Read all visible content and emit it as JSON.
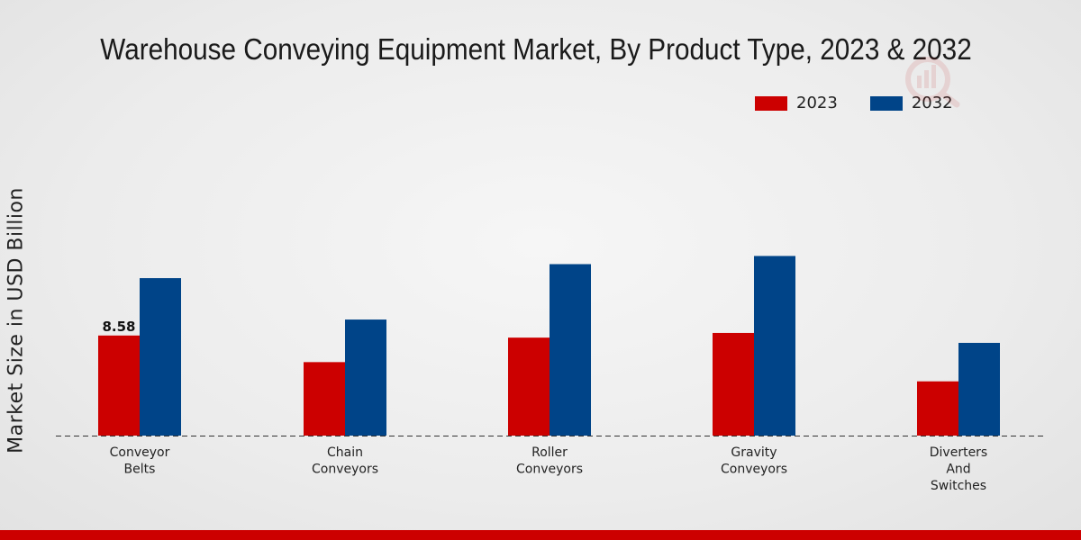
{
  "chart_data": {
    "type": "bar",
    "title": "Warehouse Conveying Equipment Market, By Product Type, 2023 & 2032",
    "xlabel": "",
    "ylabel": "Market Size in USD Billion",
    "categories": [
      [
        "Conveyor",
        "Belts"
      ],
      [
        "Chain",
        "Conveyors"
      ],
      [
        "Roller",
        "Conveyors"
      ],
      [
        "Gravity",
        "Conveyors"
      ],
      [
        "Diverters",
        "And",
        "Switches"
      ]
    ],
    "series": [
      {
        "name": "2023",
        "color": "#cc0000",
        "values": [
          8.58,
          6.3,
          8.4,
          8.8,
          4.65
        ]
      },
      {
        "name": "2032",
        "color": "#004488",
        "values": [
          13.5,
          9.95,
          14.7,
          15.4,
          7.95
        ]
      }
    ],
    "data_labels": [
      {
        "series": 0,
        "index": 0,
        "text": "8.58"
      }
    ],
    "ylim": [
      0,
      25
    ],
    "grid": false,
    "legend_position": "top-right"
  }
}
